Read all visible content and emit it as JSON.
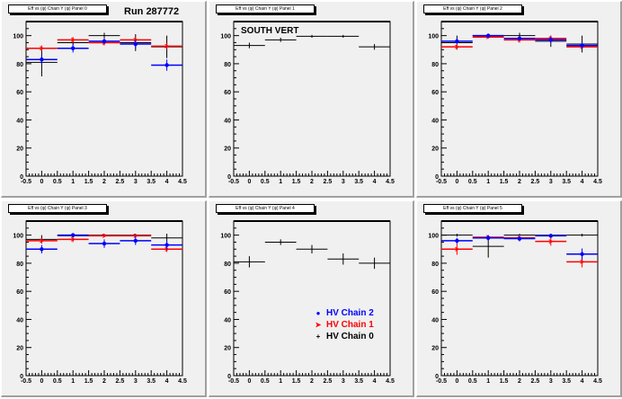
{
  "canvas": {
    "run_label": "Run 287772",
    "colors": {
      "chain0": "#000000",
      "chain1": "#ff0000",
      "chain2": "#0000ff",
      "pad": "#f0f0f0"
    }
  },
  "legend": [
    {
      "label": "HV Chain 2",
      "color": "#0000ff",
      "marker": "●"
    },
    {
      "label": "HV Chain 1",
      "color": "#ff0000",
      "marker": "➤"
    },
    {
      "label": "HV Chain 0",
      "color": "#000000",
      "marker": "+"
    }
  ],
  "chart_data": [
    {
      "type": "scatter",
      "title": "Eff vs (φ) Chain Y (φ) Panel 0",
      "xlim": [
        -0.5,
        4.5
      ],
      "ylim": [
        0,
        110
      ],
      "xticks": [
        "-0.5",
        "0",
        "0.5",
        "1",
        "1.5",
        "2",
        "2.5",
        "3",
        "3.5",
        "4",
        "4.5"
      ],
      "yticks": [
        "0",
        "20",
        "40",
        "60",
        "80",
        "100"
      ],
      "x": [
        0,
        1,
        2,
        3,
        4
      ],
      "series": [
        {
          "name": "HV Chain 0",
          "values": [
            81,
            95,
            100,
            95,
            92
          ],
          "errors": [
            10,
            2,
            2,
            6,
            8
          ]
        },
        {
          "name": "HV Chain 1",
          "values": [
            91,
            97,
            95,
            97,
            92.5
          ],
          "errors": [
            2,
            2,
            2,
            2,
            2
          ]
        },
        {
          "name": "HV Chain 2",
          "values": [
            83,
            91,
            96,
            94,
            79
          ],
          "errors": [
            3,
            3,
            2,
            3,
            4
          ]
        }
      ]
    },
    {
      "type": "scatter",
      "title": "Eff vs (φ) Chain Y (φ) Panel 1",
      "annotation": "SOUTH VERT",
      "xlim": [
        -0.5,
        4.5
      ],
      "ylim": [
        0,
        110
      ],
      "xticks": [
        "-0.5",
        "0",
        "0.5",
        "1",
        "1.5",
        "2",
        "2.5",
        "3",
        "3.5",
        "4",
        "4.5"
      ],
      "yticks": [
        "0",
        "20",
        "40",
        "60",
        "80",
        "100"
      ],
      "x": [
        0,
        1,
        2,
        3,
        4
      ],
      "series": [
        {
          "name": "HV Chain 0",
          "values": [
            93,
            97,
            99.5,
            99.5,
            92
          ],
          "errors": [
            2,
            1.5,
            1,
            1,
            2
          ]
        }
      ]
    },
    {
      "type": "scatter",
      "title": "Eff vs (φ) Chain Y (φ) Panel 2",
      "xlim": [
        -0.5,
        4.5
      ],
      "ylim": [
        0,
        110
      ],
      "xticks": [
        "-0.5",
        "0",
        "0.5",
        "1",
        "1.5",
        "2",
        "2.5",
        "3",
        "3.5",
        "4",
        "4.5"
      ],
      "yticks": [
        "0",
        "20",
        "40",
        "60",
        "80",
        "100"
      ],
      "x": [
        0,
        1,
        2,
        3,
        4
      ],
      "series": [
        {
          "name": "HV Chain 0",
          "values": [
            95,
            100,
            100,
            96,
            94
          ],
          "errors": [
            5,
            1,
            2,
            4,
            6
          ]
        },
        {
          "name": "HV Chain 1",
          "values": [
            92,
            99,
            97,
            98,
            92
          ],
          "errors": [
            2,
            1,
            2,
            2,
            1
          ]
        },
        {
          "name": "HV Chain 2",
          "values": [
            96,
            100,
            98,
            97,
            93
          ],
          "errors": [
            2,
            1,
            1,
            2,
            2
          ]
        }
      ]
    },
    {
      "type": "scatter",
      "title": "Eff vs (φ) Chain Y (φ) Panel 3",
      "xlim": [
        -0.5,
        4.5
      ],
      "ylim": [
        0,
        110
      ],
      "xticks": [
        "-0.5",
        "0",
        "0.5",
        "1",
        "1.5",
        "2",
        "2.5",
        "3",
        "3.5",
        "4",
        "4.5"
      ],
      "yticks": [
        "0",
        "20",
        "40",
        "60",
        "80",
        "100"
      ],
      "x": [
        0,
        1,
        2,
        3,
        4
      ],
      "series": [
        {
          "name": "HV Chain 0",
          "values": [
            97,
            99.5,
            100,
            100,
            98
          ],
          "errors": [
            3,
            1,
            1,
            1,
            3
          ]
        },
        {
          "name": "HV Chain 1",
          "values": [
            96,
            97,
            99.5,
            99.5,
            90
          ],
          "errors": [
            2,
            2,
            1,
            1,
            2
          ]
        },
        {
          "name": "HV Chain 2",
          "values": [
            90,
            100,
            94,
            96,
            93
          ],
          "errors": [
            3,
            1,
            3,
            3,
            3
          ]
        }
      ]
    },
    {
      "type": "scatter",
      "title": "Eff vs (φ) Chain Y (φ) Panel 4",
      "xlim": [
        -0.5,
        4.5
      ],
      "ylim": [
        0,
        110
      ],
      "xticks": [
        "-0.5",
        "0",
        "0.5",
        "1",
        "1.5",
        "2",
        "2.5",
        "3",
        "3.5",
        "4",
        "4.5"
      ],
      "yticks": [
        "0",
        "20",
        "40",
        "60",
        "80",
        "100"
      ],
      "x": [
        0,
        1,
        2,
        3,
        4
      ],
      "series": [
        {
          "name": "HV Chain 0",
          "values": [
            81,
            95,
            90,
            83,
            80
          ],
          "errors": [
            4,
            2,
            3,
            4,
            4
          ]
        }
      ]
    },
    {
      "type": "scatter",
      "title": "Eff vs (φ) Chain Y (φ) Panel 5",
      "xlim": [
        -0.5,
        4.5
      ],
      "ylim": [
        0,
        110
      ],
      "xticks": [
        "-0.5",
        "0",
        "0.5",
        "1",
        "1.5",
        "2",
        "2.5",
        "3",
        "3.5",
        "4",
        "4.5"
      ],
      "yticks": [
        "0",
        "20",
        "40",
        "60",
        "80",
        "100"
      ],
      "x": [
        0,
        1,
        2,
        3,
        4
      ],
      "series": [
        {
          "name": "HV Chain 0",
          "values": [
            100,
            92,
            100,
            100,
            100
          ],
          "errors": [
            1,
            8,
            1,
            1,
            1
          ]
        },
        {
          "name": "HV Chain 1",
          "values": [
            90,
            98.5,
            98,
            95.5,
            81
          ],
          "errors": [
            4,
            1,
            2,
            3,
            4
          ]
        },
        {
          "name": "HV Chain 2",
          "values": [
            96,
            98,
            97.5,
            99.5,
            86.5
          ],
          "errors": [
            2,
            2,
            2,
            1,
            4
          ]
        }
      ]
    }
  ]
}
